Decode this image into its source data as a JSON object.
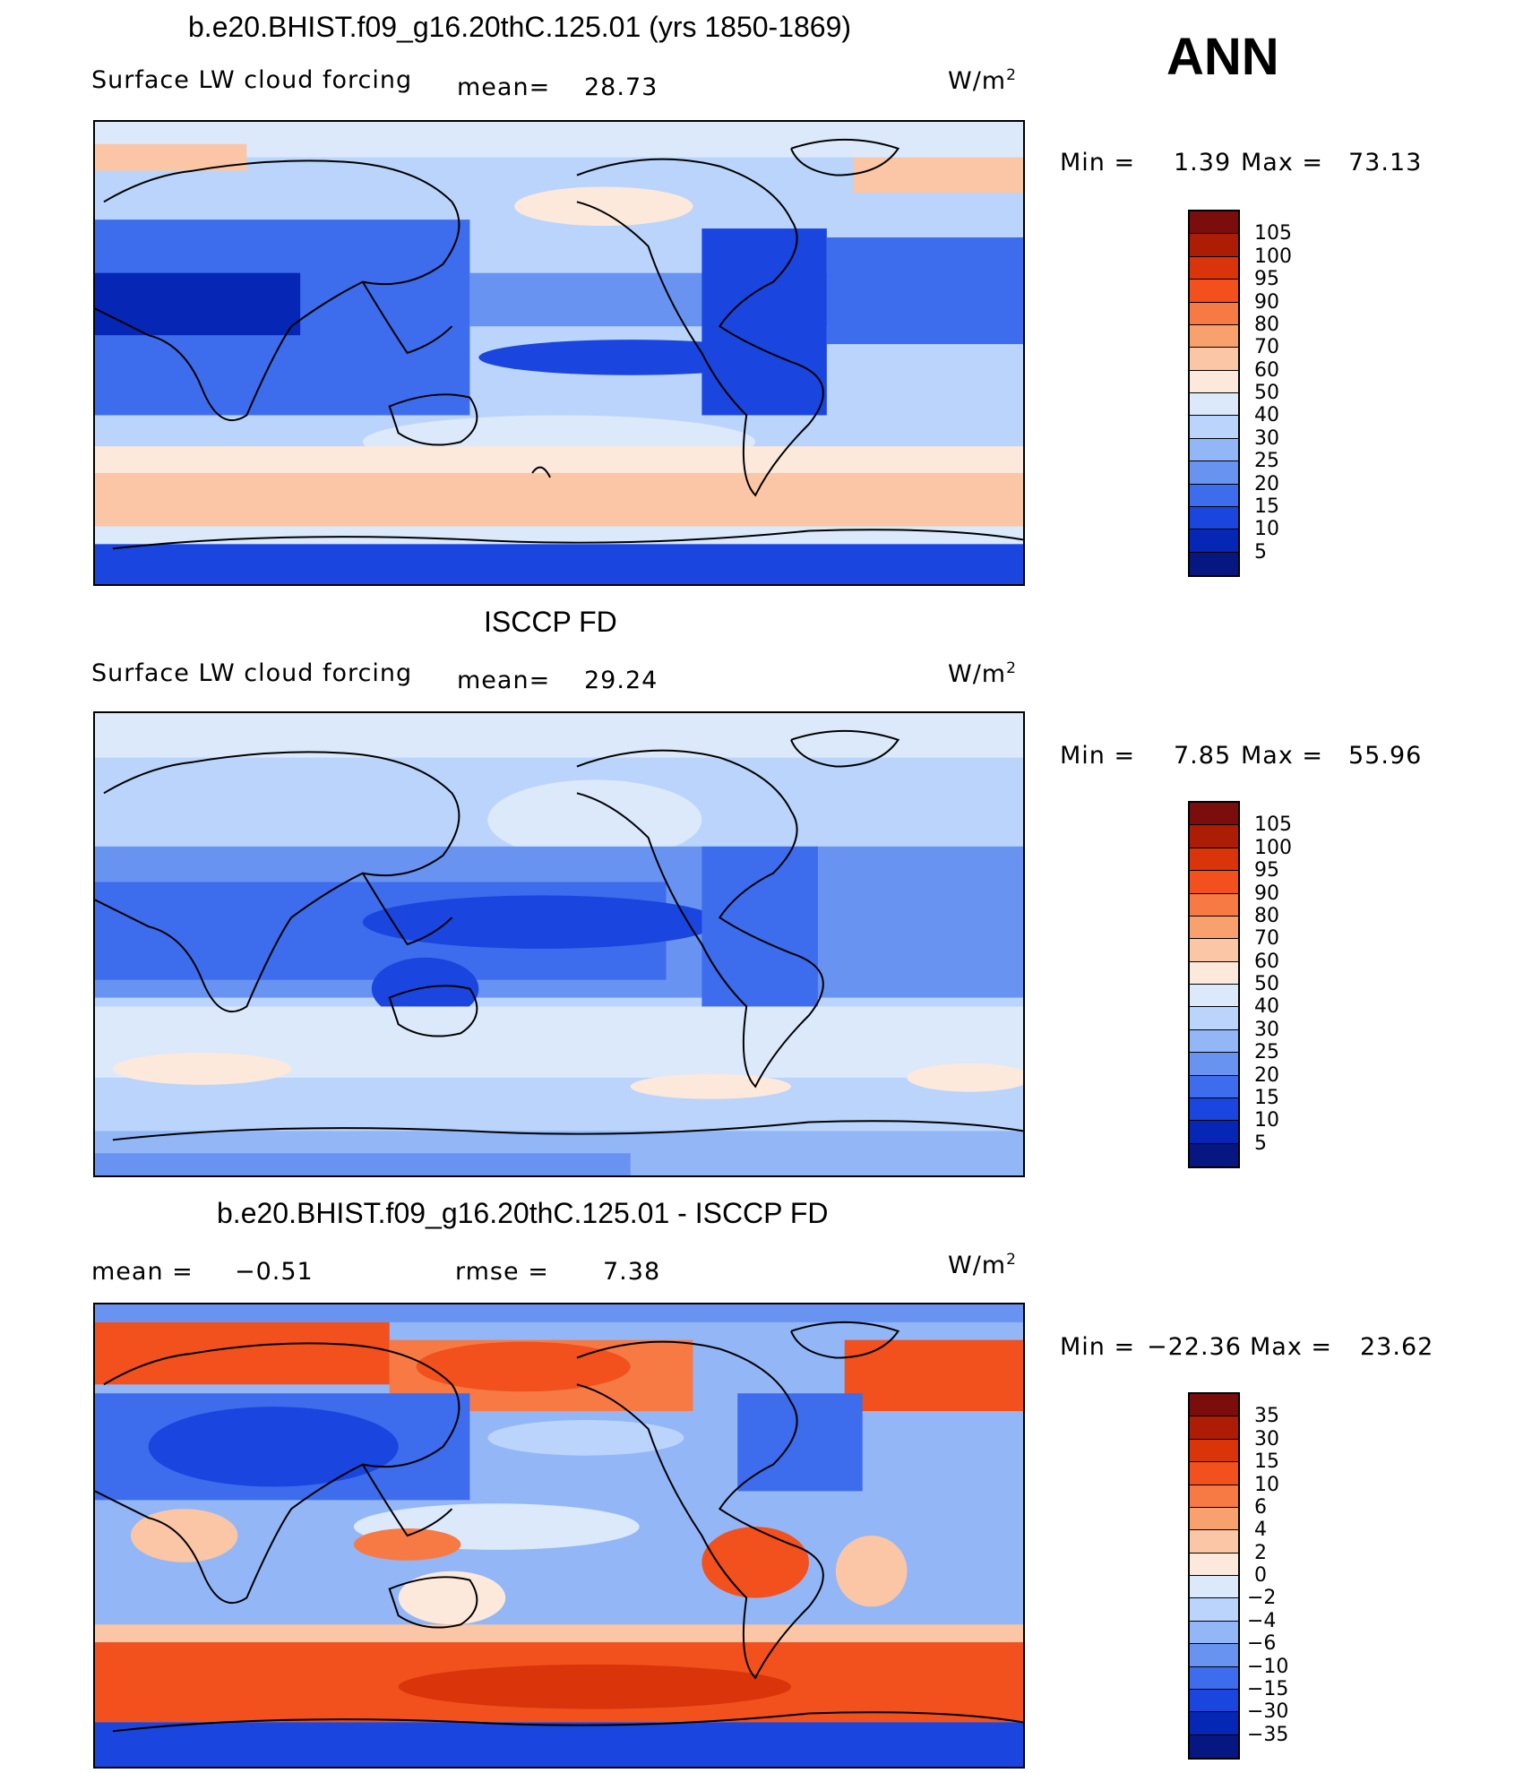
{
  "season": "ANN",
  "panels": [
    {
      "title": "b.e20.BHIST.f09_g16.20thC.125.01 (yrs 1850-1869)",
      "variable": "Surface LW cloud forcing",
      "mean_label": "mean=",
      "mean_value": "28.73",
      "units": "W/m",
      "units_sup": "2",
      "min_label": "Min =",
      "min_value": "1.39",
      "max_label": "Max =",
      "max_value": "73.13",
      "colorbar_levels": [
        "105",
        "100",
        "95",
        "90",
        "80",
        "70",
        "60",
        "50",
        "40",
        "30",
        "25",
        "20",
        "15",
        "10",
        "5"
      ]
    },
    {
      "title": "ISCCP FD",
      "variable": "Surface LW cloud forcing",
      "mean_label": "mean=",
      "mean_value": "29.24",
      "units": "W/m",
      "units_sup": "2",
      "min_label": "Min =",
      "min_value": "7.85",
      "max_label": "Max =",
      "max_value": "55.96",
      "colorbar_levels": [
        "105",
        "100",
        "95",
        "90",
        "80",
        "70",
        "60",
        "50",
        "40",
        "30",
        "25",
        "20",
        "15",
        "10",
        "5"
      ]
    },
    {
      "title": "b.e20.BHIST.f09_g16.20thC.125.01 - ISCCP FD",
      "mean_label": "mean =",
      "mean_value": "−0.51",
      "rmse_label": "rmse =",
      "rmse_value": "7.38",
      "units": "W/m",
      "units_sup": "2",
      "min_label": "Min =",
      "min_value": "−22.36",
      "max_label": "Max =",
      "max_value": "23.62",
      "colorbar_levels": [
        "35",
        "30",
        "15",
        "10",
        "6",
        "4",
        "2",
        "0",
        "−2",
        "−4",
        "−6",
        "−10",
        "−15",
        "−30",
        "−35"
      ]
    }
  ],
  "colorbar_colors": [
    "#7b0d0d",
    "#ad1d06",
    "#d9340a",
    "#f2501c",
    "#f77a45",
    "#f9a06f",
    "#fac6a6",
    "#fde9db",
    "#dbe9fb",
    "#bad4fb",
    "#93b6f7",
    "#6893f1",
    "#3d6cec",
    "#1a45de",
    "#0627b6",
    "#061782"
  ]
}
